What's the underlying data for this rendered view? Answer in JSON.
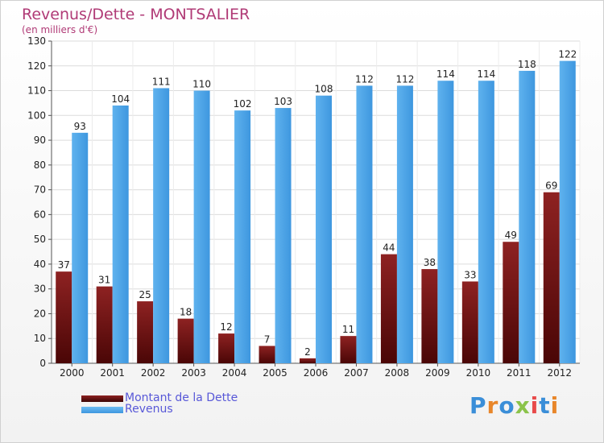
{
  "chart_data": {
    "type": "bar",
    "title": "Revenus/Dette - MONTSALIER",
    "subtitle": "(en milliers d'€)",
    "categories": [
      "2000",
      "2001",
      "2002",
      "2003",
      "2004",
      "2005",
      "2006",
      "2007",
      "2008",
      "2009",
      "2010",
      "2011",
      "2012"
    ],
    "series": [
      {
        "name": "Montant de la Dette",
        "color": "#8b1414",
        "values": [
          37,
          31,
          25,
          18,
          12,
          7,
          2,
          11,
          44,
          38,
          33,
          49,
          69
        ]
      },
      {
        "name": "Revenus",
        "color": "#4aa3e8",
        "values": [
          93,
          104,
          111,
          110,
          102,
          103,
          108,
          112,
          112,
          114,
          114,
          118,
          122
        ]
      }
    ],
    "ylim": [
      0,
      130
    ],
    "yticks": [
      0,
      10,
      20,
      30,
      40,
      50,
      60,
      70,
      80,
      90,
      100,
      110,
      120,
      130
    ],
    "grid": true,
    "legend": "bottom-left"
  },
  "branding": {
    "logo_text": "Proxiti",
    "logo_colors": [
      "#3a8ed8",
      "#e8862a",
      "#3a8ed8",
      "#8bc34a",
      "#e84a4a",
      "#3a8ed8",
      "#e8862a"
    ]
  }
}
